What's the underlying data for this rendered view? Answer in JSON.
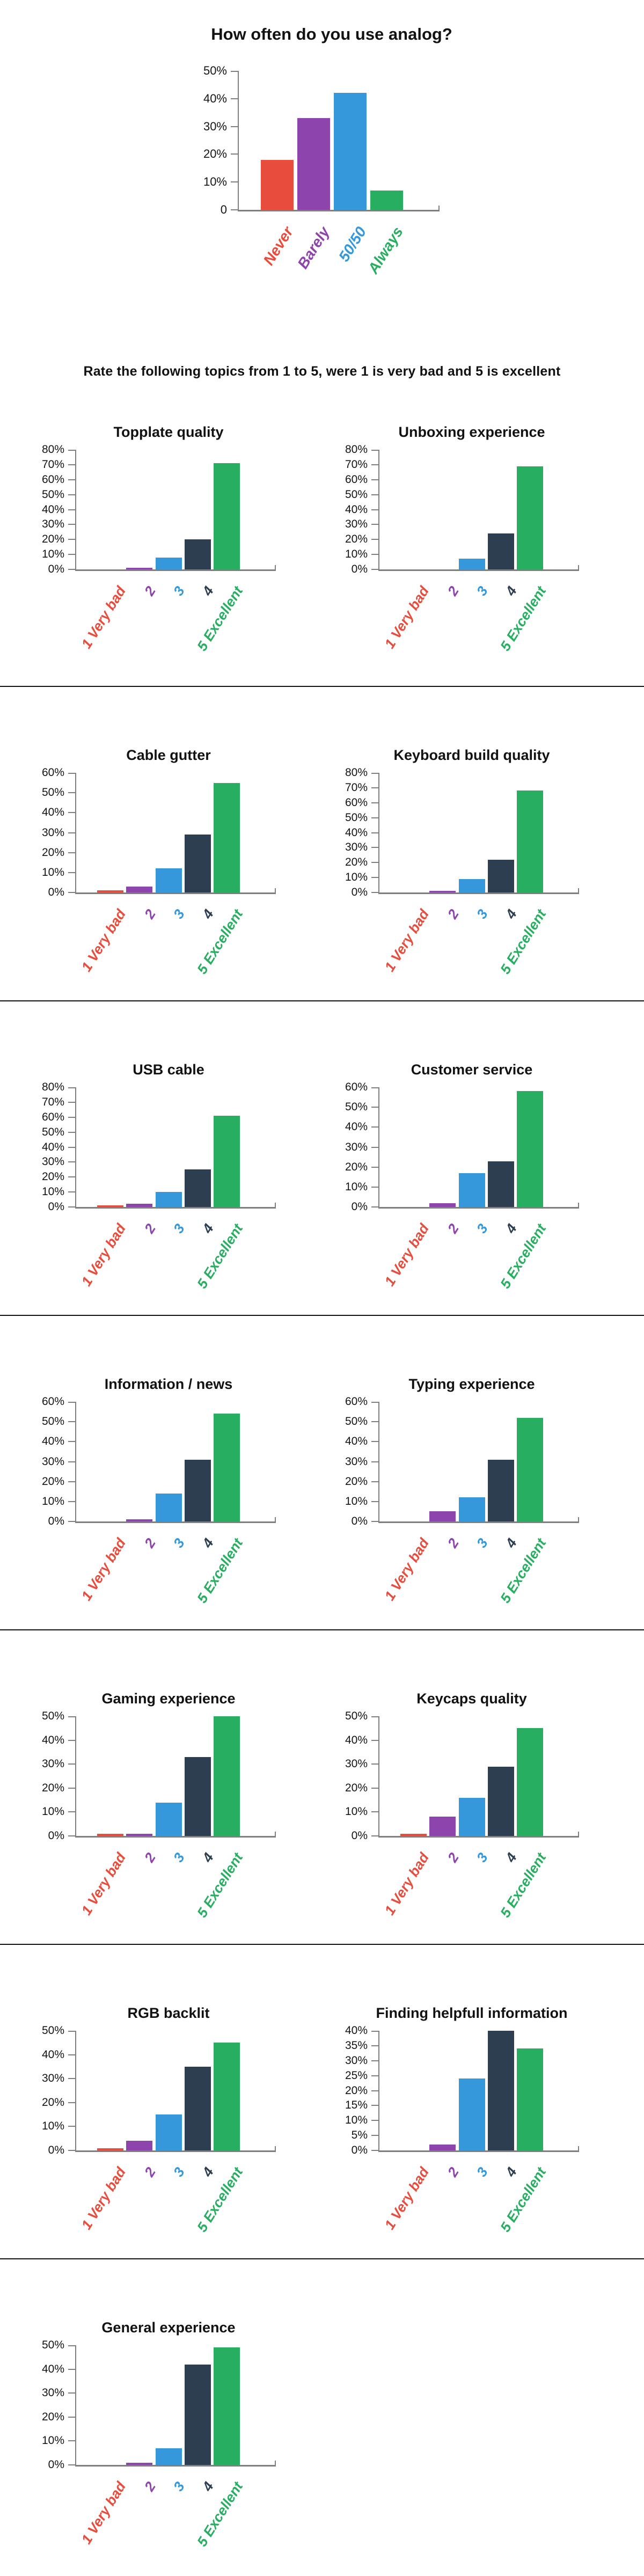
{
  "page_subtitle": "Rate the following topics from 1 to 5, were 1 is very bad and 5 is excellent",
  "colors": {
    "red": "#e74c3c",
    "purple": "#8e44ad",
    "blue": "#3498db",
    "navy": "#2c3e50",
    "green": "#27ae60",
    "axis": "#7f7f7f",
    "text": "#141414",
    "divider": "#111111",
    "background": "#ffffff"
  },
  "rating_categories": [
    "1 Very bad",
    "2",
    "3",
    "4",
    "5 Excellent"
  ],
  "rating_color_keys": [
    "red",
    "purple",
    "blue",
    "navy",
    "green"
  ],
  "chart_data": [
    {
      "id": "analog-usage",
      "type": "bar",
      "title": "How often do you use analog?",
      "categories": [
        "Never",
        "Barely",
        "50/50",
        "Always"
      ],
      "values": [
        18,
        33,
        42,
        7
      ],
      "color_keys": [
        "red",
        "purple",
        "blue",
        "green"
      ],
      "ylim": [
        0,
        50
      ],
      "ytick_step": 10,
      "ytick_suffix": "%",
      "zero_tick_label": "0",
      "grid": false,
      "legend": "none"
    },
    {
      "id": "topplate-quality",
      "type": "bar",
      "title": "Topplate quality",
      "values": [
        0,
        1,
        8,
        20,
        71
      ],
      "ylim": [
        0,
        80
      ],
      "ytick_step": 10,
      "ytick_suffix": "%",
      "zero_tick_label": "0%",
      "grid": false,
      "legend": "none"
    },
    {
      "id": "unboxing-experience",
      "type": "bar",
      "title": "Unboxing experience",
      "values": [
        0,
        0,
        7,
        24,
        69
      ],
      "ylim": [
        0,
        80
      ],
      "ytick_step": 10,
      "ytick_suffix": "%",
      "zero_tick_label": "0%",
      "grid": false,
      "legend": "none"
    },
    {
      "id": "cable-gutter",
      "type": "bar",
      "title": "Cable gutter",
      "values": [
        1,
        3,
        12,
        29,
        55
      ],
      "ylim": [
        0,
        60
      ],
      "ytick_step": 10,
      "ytick_suffix": "%",
      "zero_tick_label": "0%",
      "grid": false,
      "legend": "none"
    },
    {
      "id": "keyboard-build-quality",
      "type": "bar",
      "title": "Keyboard build quality",
      "values": [
        0,
        1,
        9,
        22,
        68
      ],
      "ylim": [
        0,
        80
      ],
      "ytick_step": 10,
      "ytick_suffix": "%",
      "zero_tick_label": "0%",
      "grid": false,
      "legend": "none"
    },
    {
      "id": "usb-cable",
      "type": "bar",
      "title": "USB cable",
      "values": [
        1,
        2,
        10,
        25,
        61
      ],
      "ylim": [
        0,
        80
      ],
      "ytick_step": 10,
      "ytick_suffix": "%",
      "zero_tick_label": "0%",
      "grid": false,
      "legend": "none"
    },
    {
      "id": "customer-service",
      "type": "bar",
      "title": "Customer service",
      "values": [
        0,
        2,
        17,
        23,
        58
      ],
      "ylim": [
        0,
        60
      ],
      "ytick_step": 10,
      "ytick_suffix": "%",
      "zero_tick_label": "0%",
      "grid": false,
      "legend": "none"
    },
    {
      "id": "information-news",
      "type": "bar",
      "title": "Information / news",
      "values": [
        0,
        1,
        14,
        31,
        54
      ],
      "ylim": [
        0,
        60
      ],
      "ytick_step": 10,
      "ytick_suffix": "%",
      "zero_tick_label": "0%",
      "grid": false,
      "legend": "none"
    },
    {
      "id": "typing-experience",
      "type": "bar",
      "title": "Typing experience",
      "values": [
        0,
        5,
        12,
        31,
        52
      ],
      "ylim": [
        0,
        60
      ],
      "ytick_step": 10,
      "ytick_suffix": "%",
      "zero_tick_label": "0%",
      "grid": false,
      "legend": "none"
    },
    {
      "id": "gaming-experience",
      "type": "bar",
      "title": "Gaming experience",
      "values": [
        1,
        1,
        14,
        33,
        50
      ],
      "ylim": [
        0,
        50
      ],
      "ytick_step": 10,
      "ytick_suffix": "%",
      "zero_tick_label": "0%",
      "grid": false,
      "legend": "none"
    },
    {
      "id": "keycaps-quality",
      "type": "bar",
      "title": "Keycaps quality",
      "values": [
        1,
        8,
        16,
        29,
        45
      ],
      "ylim": [
        0,
        50
      ],
      "ytick_step": 10,
      "ytick_suffix": "%",
      "zero_tick_label": "0%",
      "grid": false,
      "legend": "none"
    },
    {
      "id": "rgb-backlit",
      "type": "bar",
      "title": "RGB backlit",
      "values": [
        1,
        4,
        15,
        35,
        45
      ],
      "ylim": [
        0,
        50
      ],
      "ytick_step": 10,
      "ytick_suffix": "%",
      "zero_tick_label": "0%",
      "grid": false,
      "legend": "none"
    },
    {
      "id": "finding-helpfull-information",
      "type": "bar",
      "title": "Finding helpfull information",
      "values": [
        0,
        2,
        24,
        40,
        34
      ],
      "ylim": [
        0,
        40
      ],
      "ytick_step": 5,
      "ytick_suffix": "%",
      "zero_tick_label": "0%",
      "grid": false,
      "legend": "none"
    },
    {
      "id": "general-experience",
      "type": "bar",
      "title": "General experience",
      "values": [
        0,
        1,
        7,
        42,
        49
      ],
      "ylim": [
        0,
        50
      ],
      "ytick_step": 10,
      "ytick_suffix": "%",
      "zero_tick_label": "0%",
      "grid": false,
      "legend": "none"
    }
  ]
}
